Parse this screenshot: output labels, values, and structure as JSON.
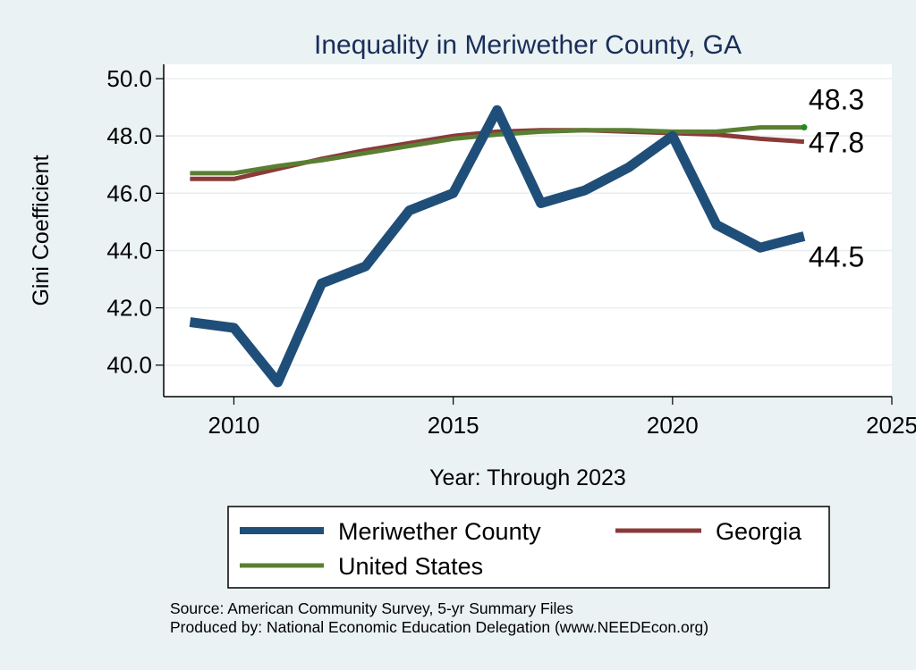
{
  "chart_data": {
    "type": "line",
    "title": "Inequality in Meriwether County, GA",
    "xlabel": "Year: Through 2023",
    "ylabel": "Gini Coefficient",
    "xlim": [
      2008.4,
      2025
    ],
    "ylim": [
      38.9,
      50.5
    ],
    "xticks": [
      2010,
      2015,
      2020,
      2025
    ],
    "yticks": [
      40.0,
      42.0,
      44.0,
      46.0,
      48.0,
      50.0
    ],
    "ytick_labels": [
      "40.0",
      "42.0",
      "44.0",
      "46.0",
      "48.0",
      "50.0"
    ],
    "grid": true,
    "legend_position": "bottom",
    "x": [
      2009,
      2010,
      2011,
      2012,
      2013,
      2014,
      2015,
      2016,
      2017,
      2018,
      2019,
      2020,
      2021,
      2022,
      2023
    ],
    "series": [
      {
        "name": "Meriwether County",
        "color": "#1f4e79",
        "end_label": "44.5",
        "values": [
          41.5,
          41.3,
          39.4,
          42.85,
          43.45,
          45.4,
          46.0,
          48.9,
          45.65,
          46.1,
          46.9,
          48.0,
          44.9,
          44.1,
          44.5
        ]
      },
      {
        "name": "Georgia",
        "color": "#8b3a3a",
        "end_label": "47.8",
        "values": [
          46.5,
          46.5,
          46.85,
          47.2,
          47.5,
          47.75,
          48.0,
          48.15,
          48.2,
          48.2,
          48.15,
          48.1,
          48.05,
          47.9,
          47.8
        ]
      },
      {
        "name": "United States",
        "color": "#5a7f32",
        "end_label": "48.3",
        "values": [
          46.7,
          46.7,
          46.95,
          47.15,
          47.4,
          47.65,
          47.9,
          48.05,
          48.15,
          48.2,
          48.2,
          48.15,
          48.15,
          48.3,
          48.3
        ]
      }
    ],
    "notes": [
      "Source: American Community Survey, 5-yr Summary Files",
      "Produced by: National Economic Education Delegation (www.NEEDEcon.org)"
    ]
  }
}
